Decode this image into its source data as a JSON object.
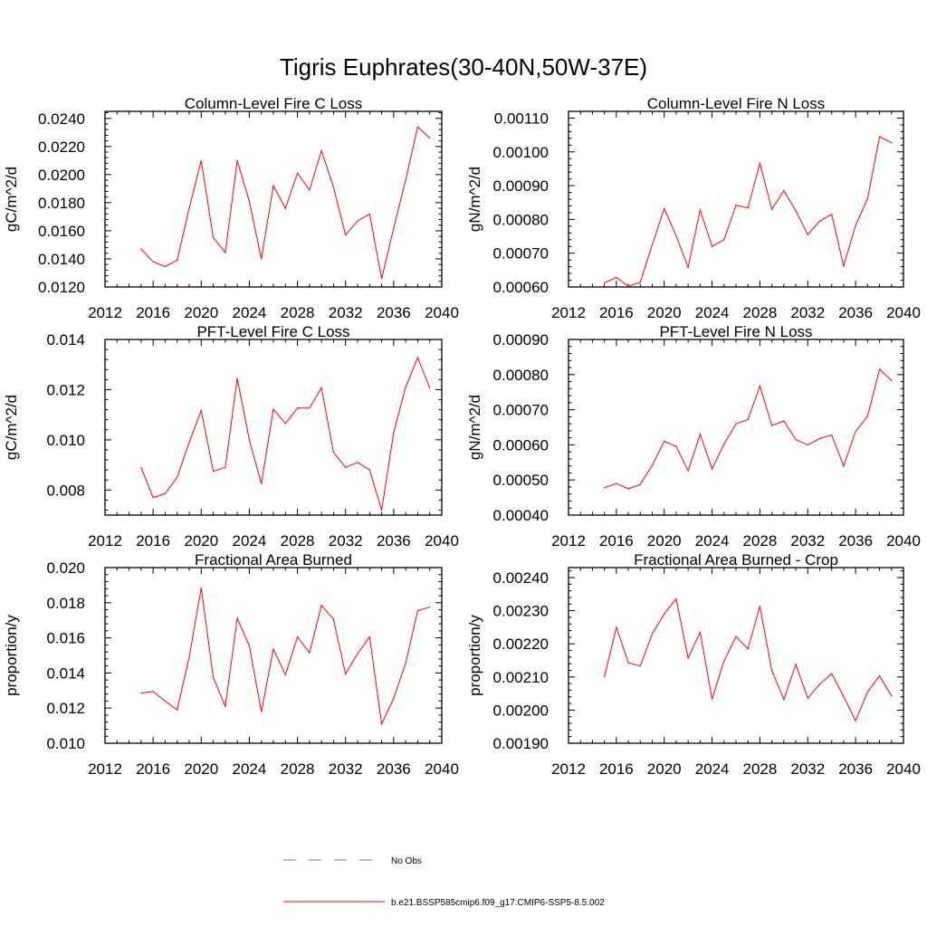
{
  "figure": {
    "title": "Tigris Euphrates(30-40N,50W-37E)"
  },
  "legend": {
    "items": [
      {
        "label": "No Obs",
        "color": "#6b6bd6",
        "dash": true
      },
      {
        "label": "b.e21.BSSP585cmip6.f09_g17.CMIP6-SSP5-8.5.002",
        "color": "#ff0000",
        "dash": false
      }
    ]
  },
  "chart_data": [
    {
      "type": "line",
      "title": "Column-Level Fire C Loss",
      "ylabel": "gC/m^2/d",
      "xlim": [
        2012,
        2040
      ],
      "xticks": [
        2012,
        2016,
        2020,
        2024,
        2028,
        2032,
        2036,
        2040
      ],
      "ylim": [
        0.012,
        0.0245
      ],
      "yticks": [
        "0.0120",
        "0.0140",
        "0.0160",
        "0.0180",
        "0.0200",
        "0.0220",
        "0.0240"
      ],
      "x": [
        2015,
        2016,
        2017,
        2018,
        2019,
        2020,
        2021,
        2022,
        2023,
        2024,
        2025,
        2026,
        2027,
        2028,
        2029,
        2030,
        2031,
        2032,
        2033,
        2034,
        2035,
        2036,
        2037,
        2038,
        2039
      ],
      "series": [
        {
          "color": "#ff0000",
          "values": [
            0.0147,
            0.0138,
            0.01345,
            0.0139,
            0.0176,
            0.021,
            0.0155,
            0.01445,
            0.021,
            0.0181,
            0.014,
            0.0192,
            0.0176,
            0.0201,
            0.0189,
            0.0217,
            0.0191,
            0.0157,
            0.0167,
            0.0172,
            0.0126,
            0.0162,
            0.0196,
            0.0234,
            0.0226
          ]
        }
      ]
    },
    {
      "type": "line",
      "title": "Column-Level Fire N Loss",
      "ylabel": "gN/m^2/d",
      "xlim": [
        2012,
        2040
      ],
      "xticks": [
        2012,
        2016,
        2020,
        2024,
        2028,
        2032,
        2036,
        2040
      ],
      "ylim": [
        0.0006,
        0.00112
      ],
      "yticks": [
        "0.00060",
        "0.00070",
        "0.00080",
        "0.00090",
        "0.00100",
        "0.00110"
      ],
      "x": [
        2015,
        2016,
        2017,
        2018,
        2019,
        2020,
        2021,
        2022,
        2023,
        2024,
        2025,
        2026,
        2027,
        2028,
        2029,
        2030,
        2031,
        2032,
        2033,
        2034,
        2035,
        2036,
        2037,
        2038,
        2039
      ],
      "series": [
        {
          "color": "#ff0000",
          "values": [
            0.000612,
            0.000628,
            0.000602,
            0.000614,
            0.000725,
            0.000832,
            0.000752,
            0.000658,
            0.000828,
            0.00072,
            0.00074,
            0.000842,
            0.000834,
            0.000966,
            0.00083,
            0.000885,
            0.000826,
            0.000755,
            0.000795,
            0.000815,
            0.000662,
            0.000782,
            0.000862,
            0.001045,
            0.001027
          ]
        }
      ]
    },
    {
      "type": "line",
      "title": "PFT-Level Fire C Loss",
      "ylabel": "gC/m^2/d",
      "xlim": [
        2012,
        2040
      ],
      "xticks": [
        2012,
        2016,
        2020,
        2024,
        2028,
        2032,
        2036,
        2040
      ],
      "ylim": [
        0.007,
        0.014
      ],
      "yticks": [
        "0.008",
        "0.010",
        "0.012",
        "0.014"
      ],
      "x": [
        2015,
        2016,
        2017,
        2018,
        2019,
        2020,
        2021,
        2022,
        2023,
        2024,
        2025,
        2026,
        2027,
        2028,
        2029,
        2030,
        2031,
        2032,
        2033,
        2034,
        2035,
        2036,
        2037,
        2038,
        2039
      ],
      "series": [
        {
          "color": "#ff0000",
          "values": [
            0.0089,
            0.0077,
            0.00785,
            0.0085,
            0.0099,
            0.01117,
            0.00875,
            0.0089,
            0.01245,
            0.01,
            0.00825,
            0.01122,
            0.01065,
            0.01127,
            0.01127,
            0.01207,
            0.0095,
            0.0089,
            0.0091,
            0.0088,
            0.0072,
            0.0103,
            0.0121,
            0.01328,
            0.01207
          ]
        }
      ]
    },
    {
      "type": "line",
      "title": "PFT-Level Fire N Loss",
      "ylabel": "gN/m^2/d",
      "xlim": [
        2012,
        2040
      ],
      "xticks": [
        2012,
        2016,
        2020,
        2024,
        2028,
        2032,
        2036,
        2040
      ],
      "ylim": [
        0.0004,
        0.0009
      ],
      "yticks": [
        "0.00040",
        "0.00050",
        "0.00060",
        "0.00070",
        "0.00080",
        "0.00090"
      ],
      "x": [
        2015,
        2016,
        2017,
        2018,
        2019,
        2020,
        2021,
        2022,
        2023,
        2024,
        2025,
        2026,
        2027,
        2028,
        2029,
        2030,
        2031,
        2032,
        2033,
        2034,
        2035,
        2036,
        2037,
        2038,
        2039
      ],
      "series": [
        {
          "color": "#ff0000",
          "values": [
            0.000478,
            0.00049,
            0.000475,
            0.000487,
            0.000542,
            0.00061,
            0.000596,
            0.000526,
            0.00063,
            0.000532,
            0.000602,
            0.00066,
            0.000672,
            0.000768,
            0.000655,
            0.000668,
            0.000615,
            0.0006,
            0.000618,
            0.000628,
            0.00054,
            0.000638,
            0.000682,
            0.000815,
            0.000783
          ]
        }
      ]
    },
    {
      "type": "line",
      "title": "Fractional Area Burned",
      "ylabel": "proportion/y",
      "xlim": [
        2012,
        2040
      ],
      "xticks": [
        2012,
        2016,
        2020,
        2024,
        2028,
        2032,
        2036,
        2040
      ],
      "ylim": [
        0.01,
        0.02
      ],
      "yticks": [
        "0.010",
        "0.012",
        "0.014",
        "0.016",
        "0.018",
        "0.020"
      ],
      "x": [
        2015,
        2016,
        2017,
        2018,
        2019,
        2020,
        2021,
        2022,
        2023,
        2024,
        2025,
        2026,
        2027,
        2028,
        2029,
        2030,
        2031,
        2032,
        2033,
        2034,
        2035,
        2036,
        2037,
        2038,
        2039
      ],
      "series": [
        {
          "color": "#ff0000",
          "values": [
            0.01285,
            0.01295,
            0.0124,
            0.0119,
            0.0149,
            0.01885,
            0.01375,
            0.0121,
            0.01712,
            0.01555,
            0.0118,
            0.01535,
            0.0139,
            0.01605,
            0.01515,
            0.01785,
            0.01705,
            0.01395,
            0.0151,
            0.01605,
            0.0111,
            0.01255,
            0.01455,
            0.01755,
            0.01775
          ]
        }
      ]
    },
    {
      "type": "line",
      "title": "Fractional Area Burned - Crop",
      "ylabel": "proportion/y",
      "xlim": [
        2012,
        2040
      ],
      "xticks": [
        2012,
        2016,
        2020,
        2024,
        2028,
        2032,
        2036,
        2040
      ],
      "ylim": [
        0.0019,
        0.00243
      ],
      "yticks": [
        "0.00190",
        "0.00200",
        "0.00210",
        "0.00220",
        "0.00230",
        "0.00240"
      ],
      "x": [
        2015,
        2016,
        2017,
        2018,
        2019,
        2020,
        2021,
        2022,
        2023,
        2024,
        2025,
        2026,
        2027,
        2028,
        2029,
        2030,
        2031,
        2032,
        2033,
        2034,
        2035,
        2036,
        2037,
        2038,
        2039
      ],
      "series": [
        {
          "color": "#ff0000",
          "values": [
            0.0021,
            0.00225,
            0.002143,
            0.002133,
            0.00223,
            0.00229,
            0.002336,
            0.002157,
            0.002235,
            0.002033,
            0.002148,
            0.002222,
            0.002185,
            0.002313,
            0.00212,
            0.002032,
            0.002138,
            0.002036,
            0.002078,
            0.00211,
            0.002041,
            0.001968,
            0.002055,
            0.002103,
            0.002043
          ]
        }
      ]
    }
  ]
}
